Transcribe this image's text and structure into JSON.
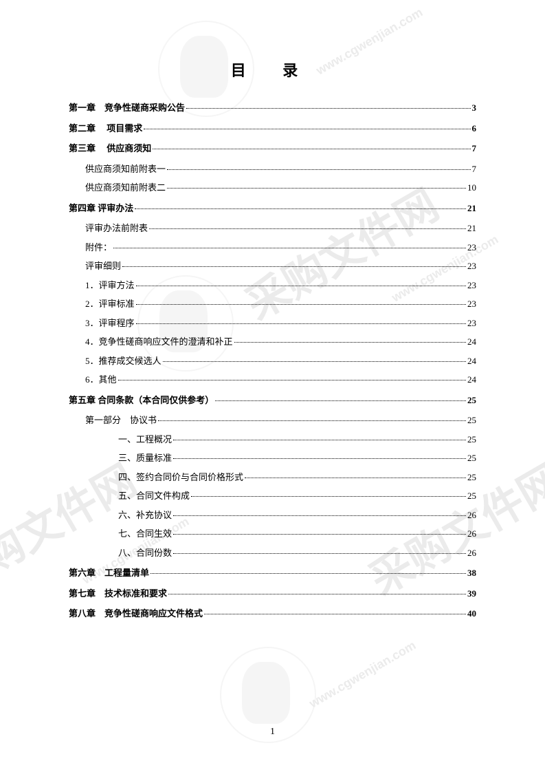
{
  "title": "目 录",
  "pageNumber": "1",
  "watermarks": {
    "text": "采购文件网",
    "url": "www.cgwenjian.com"
  },
  "entries": [
    {
      "label": "第一章　竞争性磋商采购公告",
      "page": "3",
      "bold": true,
      "indent": 0,
      "spaced": false
    },
    {
      "label": "第二章　 项目需求",
      "page": "6",
      "bold": true,
      "indent": 0,
      "spaced": true
    },
    {
      "label": "第三章　 供应商须知",
      "page": "7",
      "bold": true,
      "indent": 0,
      "spaced": true
    },
    {
      "label": "供应商须知前附表一",
      "page": "7",
      "bold": false,
      "indent": 1,
      "spaced": true
    },
    {
      "label": "供应商须知前附表二",
      "page": "10",
      "bold": false,
      "indent": 1,
      "spaced": false
    },
    {
      "label": "第四章 评审办法",
      "page": "21",
      "bold": true,
      "indent": 0,
      "spaced": true
    },
    {
      "label": "评审办法前附表",
      "page": "21",
      "bold": false,
      "indent": 1,
      "spaced": true
    },
    {
      "label": "附件：",
      "page": "23",
      "bold": false,
      "indent": 1,
      "spaced": false
    },
    {
      "label": "评审细则",
      "page": "23",
      "bold": false,
      "indent": 1,
      "spaced": false
    },
    {
      "label": "1．评审方法",
      "page": "23",
      "bold": false,
      "indent": 2,
      "spaced": false
    },
    {
      "label": "2．评审标准",
      "page": "23",
      "bold": false,
      "indent": 2,
      "spaced": false
    },
    {
      "label": "3．评审程序",
      "page": "23",
      "bold": false,
      "indent": 2,
      "spaced": false
    },
    {
      "label": "4．竞争性磋商响应文件的澄清和补正",
      "page": "24",
      "bold": false,
      "indent": 2,
      "spaced": false
    },
    {
      "label": "5．推荐成交候选人",
      "page": "24",
      "bold": false,
      "indent": 2,
      "spaced": false
    },
    {
      "label": "6．其他",
      "page": "24",
      "bold": false,
      "indent": 2,
      "spaced": false
    },
    {
      "label": "第五章 合同条款（本合同仅供参考）",
      "page": "25",
      "bold": true,
      "indent": 0,
      "spaced": true
    },
    {
      "label": "第一部分　协议书",
      "page": "25",
      "bold": false,
      "indent": 1,
      "spaced": true
    },
    {
      "label": "一、工程概况",
      "page": "25",
      "bold": false,
      "indent": 3,
      "spaced": false
    },
    {
      "label": "三、质量标准",
      "page": "25",
      "bold": false,
      "indent": 3,
      "spaced": false
    },
    {
      "label": "四、签约合同价与合同价格形式",
      "page": "25",
      "bold": false,
      "indent": 3,
      "spaced": false
    },
    {
      "label": "五、合同文件构成",
      "page": "25",
      "bold": false,
      "indent": 3,
      "spaced": false
    },
    {
      "label": "六、补充协议",
      "page": "26",
      "bold": false,
      "indent": 3,
      "spaced": false
    },
    {
      "label": "七、合同生效",
      "page": "26",
      "bold": false,
      "indent": 3,
      "spaced": false
    },
    {
      "label": "八、合同份数",
      "page": "26",
      "bold": false,
      "indent": 3,
      "spaced": false
    },
    {
      "label": "第六章　工程量清单",
      "page": "38",
      "bold": true,
      "indent": 0,
      "spaced": true
    },
    {
      "label": "第七章　技术标准和要求",
      "page": "39",
      "bold": true,
      "indent": 0,
      "spaced": true
    },
    {
      "label": "第八章　竞争性磋商响应文件格式",
      "page": "40",
      "bold": true,
      "indent": 0,
      "spaced": true
    }
  ]
}
